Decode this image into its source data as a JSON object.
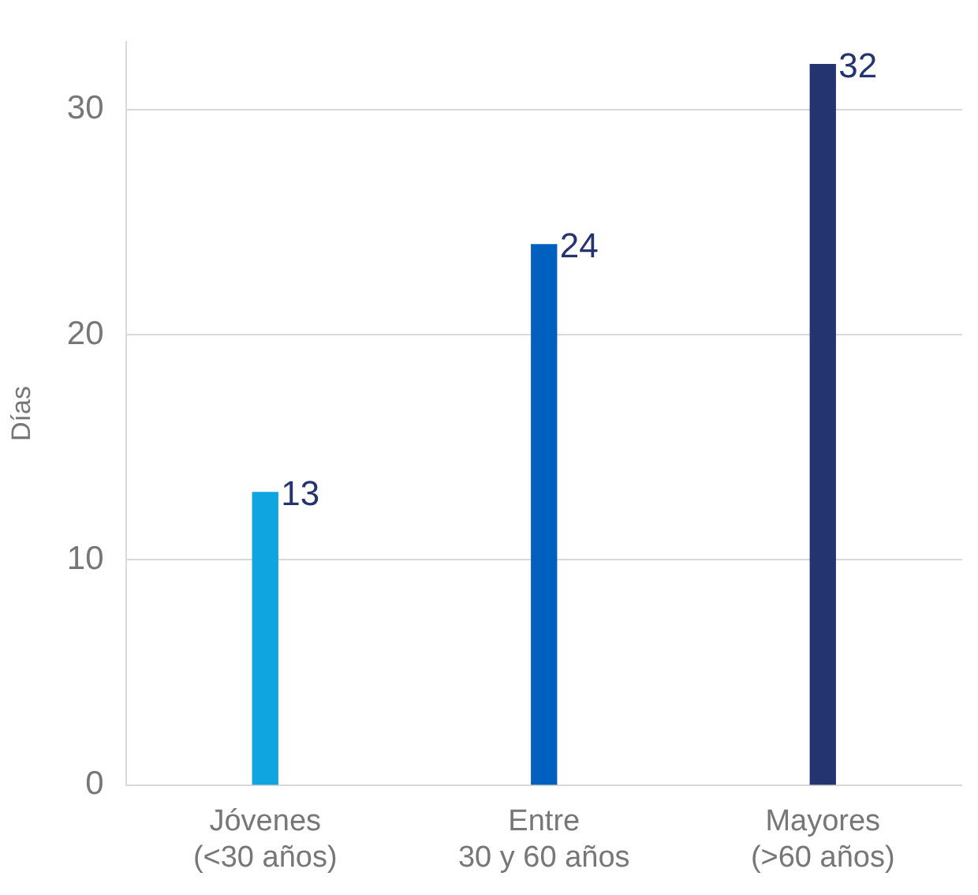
{
  "chart_data": {
    "type": "bar",
    "ylabel": "Días",
    "categories": [
      "Jóvenes\n(<30 años)",
      "Entre\n30 y 60 años",
      "Mayores\n(>60 años)"
    ],
    "values": [
      13,
      24,
      32
    ],
    "colors": [
      "#0ea5e0",
      "#0060c0",
      "#233470"
    ],
    "ylim": [
      0,
      33
    ],
    "yticks": [
      0,
      10,
      20,
      30
    ],
    "grid": "y",
    "data_labels": true
  }
}
